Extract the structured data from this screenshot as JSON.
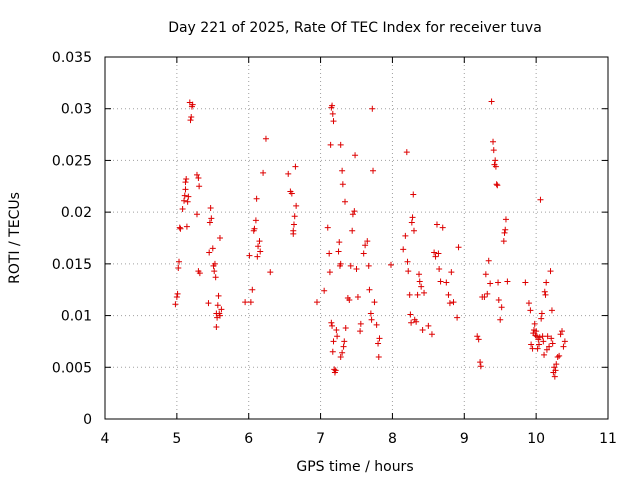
{
  "chart_data": {
    "type": "scatter",
    "title": "Day 221 of 2025, Rate Of TEC Index for receiver tuva",
    "xlabel": "GPS time / hours",
    "ylabel": "ROTI / TECUs",
    "xlim": [
      4,
      11
    ],
    "ylim": [
      0,
      0.035
    ],
    "xticks": [
      "4",
      "5",
      "6",
      "7",
      "8",
      "9",
      "10",
      "11"
    ],
    "yticks": [
      "0",
      "0.005",
      "0.01",
      "0.015",
      "0.02",
      "0.025",
      "0.03",
      "0.035"
    ],
    "grid": true,
    "marker": "plus",
    "color": "#dd0000",
    "points": [
      [
        4.98,
        0.0111
      ],
      [
        5.0,
        0.0118
      ],
      [
        5.01,
        0.0121
      ],
      [
        5.02,
        0.0146
      ],
      [
        5.03,
        0.0152
      ],
      [
        5.04,
        0.0185
      ],
      [
        5.05,
        0.0184
      ],
      [
        5.08,
        0.0203
      ],
      [
        5.1,
        0.0211
      ],
      [
        5.11,
        0.0216
      ],
      [
        5.12,
        0.0222
      ],
      [
        5.12,
        0.0229
      ],
      [
        5.13,
        0.0232
      ],
      [
        5.14,
        0.0186
      ],
      [
        5.15,
        0.021
      ],
      [
        5.16,
        0.0215
      ],
      [
        5.18,
        0.0306
      ],
      [
        5.19,
        0.0289
      ],
      [
        5.2,
        0.0292
      ],
      [
        5.21,
        0.0302
      ],
      [
        5.22,
        0.0304
      ],
      [
        5.28,
        0.0236
      ],
      [
        5.3,
        0.0233
      ],
      [
        5.31,
        0.0225
      ],
      [
        5.28,
        0.0198
      ],
      [
        5.3,
        0.0143
      ],
      [
        5.32,
        0.0141
      ],
      [
        5.44,
        0.0112
      ],
      [
        5.45,
        0.0161
      ],
      [
        5.46,
        0.019
      ],
      [
        5.47,
        0.0204
      ],
      [
        5.48,
        0.0194
      ],
      [
        5.5,
        0.0165
      ],
      [
        5.51,
        0.0148
      ],
      [
        5.52,
        0.0143
      ],
      [
        5.53,
        0.015
      ],
      [
        5.54,
        0.0137
      ],
      [
        5.55,
        0.0102
      ],
      [
        5.55,
        0.0089
      ],
      [
        5.56,
        0.0098
      ],
      [
        5.57,
        0.011
      ],
      [
        5.58,
        0.0119
      ],
      [
        5.59,
        0.0102
      ],
      [
        5.6,
        0.01
      ],
      [
        5.6,
        0.0175
      ],
      [
        5.62,
        0.0106
      ],
      [
        5.95,
        0.0113
      ],
      [
        6.01,
        0.0158
      ],
      [
        6.03,
        0.0113
      ],
      [
        6.05,
        0.0125
      ],
      [
        6.07,
        0.0182
      ],
      [
        6.08,
        0.0184
      ],
      [
        6.1,
        0.0192
      ],
      [
        6.11,
        0.0213
      ],
      [
        6.12,
        0.0157
      ],
      [
        6.13,
        0.0167
      ],
      [
        6.15,
        0.0172
      ],
      [
        6.16,
        0.0162
      ],
      [
        6.2,
        0.0238
      ],
      [
        6.24,
        0.0271
      ],
      [
        6.3,
        0.0142
      ],
      [
        6.55,
        0.0237
      ],
      [
        6.58,
        0.022
      ],
      [
        6.6,
        0.0218
      ],
      [
        6.62,
        0.0182
      ],
      [
        6.62,
        0.0179
      ],
      [
        6.63,
        0.0188
      ],
      [
        6.64,
        0.0196
      ],
      [
        6.65,
        0.0244
      ],
      [
        6.66,
        0.0206
      ],
      [
        6.95,
        0.0113
      ],
      [
        7.05,
        0.0124
      ],
      [
        7.1,
        0.0185
      ],
      [
        7.12,
        0.016
      ],
      [
        7.13,
        0.0142
      ],
      [
        7.14,
        0.0265
      ],
      [
        7.15,
        0.0301
      ],
      [
        7.16,
        0.0303
      ],
      [
        7.17,
        0.0295
      ],
      [
        7.18,
        0.0288
      ],
      [
        7.15,
        0.0093
      ],
      [
        7.16,
        0.009
      ],
      [
        7.17,
        0.0065
      ],
      [
        7.18,
        0.0075
      ],
      [
        7.19,
        0.0048
      ],
      [
        7.2,
        0.0045
      ],
      [
        7.21,
        0.0047
      ],
      [
        7.22,
        0.0086
      ],
      [
        7.23,
        0.008
      ],
      [
        7.25,
        0.0162
      ],
      [
        7.26,
        0.0171
      ],
      [
        7.27,
        0.0148
      ],
      [
        7.28,
        0.015
      ],
      [
        7.28,
        0.006
      ],
      [
        7.3,
        0.0064
      ],
      [
        7.32,
        0.007
      ],
      [
        7.33,
        0.0075
      ],
      [
        7.35,
        0.0088
      ],
      [
        7.38,
        0.0117
      ],
      [
        7.4,
        0.0115
      ],
      [
        7.42,
        0.0148
      ],
      [
        7.44,
        0.0182
      ],
      [
        7.45,
        0.0198
      ],
      [
        7.47,
        0.0201
      ],
      [
        7.48,
        0.0255
      ],
      [
        7.5,
        0.0145
      ],
      [
        7.52,
        0.0118
      ],
      [
        7.55,
        0.0085
      ],
      [
        7.56,
        0.0092
      ],
      [
        7.6,
        0.016
      ],
      [
        7.62,
        0.0168
      ],
      [
        7.65,
        0.0172
      ],
      [
        7.67,
        0.0148
      ],
      [
        7.68,
        0.0125
      ],
      [
        7.7,
        0.0102
      ],
      [
        7.71,
        0.0096
      ],
      [
        7.72,
        0.03
      ],
      [
        7.73,
        0.024
      ],
      [
        7.75,
        0.0113
      ],
      [
        7.78,
        0.0091
      ],
      [
        7.8,
        0.0073
      ],
      [
        7.81,
        0.006
      ],
      [
        7.82,
        0.0078
      ],
      [
        7.3,
        0.024
      ],
      [
        7.31,
        0.0227
      ],
      [
        7.28,
        0.0265
      ],
      [
        7.34,
        0.021
      ],
      [
        7.98,
        0.0149
      ],
      [
        8.15,
        0.0164
      ],
      [
        8.18,
        0.0177
      ],
      [
        8.2,
        0.0258
      ],
      [
        8.21,
        0.0152
      ],
      [
        8.22,
        0.0143
      ],
      [
        8.24,
        0.012
      ],
      [
        8.25,
        0.0101
      ],
      [
        8.26,
        0.0093
      ],
      [
        8.27,
        0.019
      ],
      [
        8.28,
        0.0195
      ],
      [
        8.29,
        0.0217
      ],
      [
        8.3,
        0.0182
      ],
      [
        8.31,
        0.0096
      ],
      [
        8.33,
        0.0094
      ],
      [
        8.35,
        0.012
      ],
      [
        8.37,
        0.014
      ],
      [
        8.38,
        0.0133
      ],
      [
        8.4,
        0.0128
      ],
      [
        8.42,
        0.0086
      ],
      [
        8.44,
        0.0122
      ],
      [
        8.5,
        0.009
      ],
      [
        8.55,
        0.0082
      ],
      [
        8.58,
        0.0161
      ],
      [
        8.6,
        0.0157
      ],
      [
        8.62,
        0.0188
      ],
      [
        8.64,
        0.016
      ],
      [
        8.65,
        0.0145
      ],
      [
        8.67,
        0.0133
      ],
      [
        8.7,
        0.0185
      ],
      [
        8.75,
        0.0132
      ],
      [
        8.78,
        0.012
      ],
      [
        8.8,
        0.0112
      ],
      [
        8.82,
        0.0142
      ],
      [
        8.85,
        0.0113
      ],
      [
        8.9,
        0.0098
      ],
      [
        8.92,
        0.0166
      ],
      [
        9.18,
        0.008
      ],
      [
        9.2,
        0.0077
      ],
      [
        9.22,
        0.0055
      ],
      [
        9.23,
        0.0051
      ],
      [
        9.25,
        0.0118
      ],
      [
        9.28,
        0.0118
      ],
      [
        9.3,
        0.014
      ],
      [
        9.32,
        0.0121
      ],
      [
        9.34,
        0.0153
      ],
      [
        9.36,
        0.0131
      ],
      [
        9.38,
        0.0307
      ],
      [
        9.4,
        0.0268
      ],
      [
        9.41,
        0.026
      ],
      [
        9.42,
        0.0246
      ],
      [
        9.43,
        0.025
      ],
      [
        9.44,
        0.0244
      ],
      [
        9.45,
        0.0227
      ],
      [
        9.46,
        0.0226
      ],
      [
        9.47,
        0.0132
      ],
      [
        9.48,
        0.0115
      ],
      [
        9.5,
        0.0096
      ],
      [
        9.52,
        0.0108
      ],
      [
        9.55,
        0.0172
      ],
      [
        9.56,
        0.018
      ],
      [
        9.57,
        0.0183
      ],
      [
        9.58,
        0.0193
      ],
      [
        9.6,
        0.0133
      ],
      [
        9.85,
        0.0132
      ],
      [
        9.9,
        0.0112
      ],
      [
        9.92,
        0.0105
      ],
      [
        9.93,
        0.0072
      ],
      [
        9.95,
        0.0068
      ],
      [
        9.96,
        0.0083
      ],
      [
        9.97,
        0.0086
      ],
      [
        9.98,
        0.0092
      ],
      [
        9.99,
        0.0081
      ],
      [
        10.0,
        0.0085
      ],
      [
        10.01,
        0.008
      ],
      [
        10.02,
        0.0068
      ],
      [
        10.03,
        0.0077
      ],
      [
        10.04,
        0.0072
      ],
      [
        10.05,
        0.0079
      ],
      [
        10.06,
        0.0212
      ],
      [
        10.07,
        0.0097
      ],
      [
        10.08,
        0.0102
      ],
      [
        10.09,
        0.008
      ],
      [
        10.1,
        0.0075
      ],
      [
        10.11,
        0.0062
      ],
      [
        10.12,
        0.0123
      ],
      [
        10.13,
        0.012
      ],
      [
        10.14,
        0.0132
      ],
      [
        10.15,
        0.0067
      ],
      [
        10.16,
        0.008
      ],
      [
        10.18,
        0.007
      ],
      [
        10.2,
        0.0143
      ],
      [
        10.21,
        0.0078
      ],
      [
        10.22,
        0.0105
      ],
      [
        10.23,
        0.0073
      ],
      [
        10.24,
        0.0045
      ],
      [
        10.25,
        0.005
      ],
      [
        10.26,
        0.0041
      ],
      [
        10.27,
        0.0047
      ],
      [
        10.28,
        0.0053
      ],
      [
        10.3,
        0.006
      ],
      [
        10.32,
        0.0061
      ],
      [
        10.34,
        0.0082
      ],
      [
        10.36,
        0.0085
      ],
      [
        10.38,
        0.007
      ],
      [
        10.4,
        0.0075
      ]
    ]
  }
}
